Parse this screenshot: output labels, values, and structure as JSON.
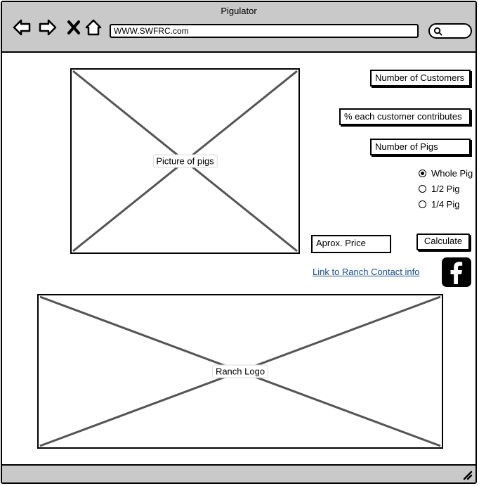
{
  "window": {
    "title": "Pigulator"
  },
  "browser": {
    "url": "WWW.SWFRC.com",
    "nav_icons": [
      "back-arrow-icon",
      "forward-arrow-icon",
      "close-icon",
      "home-icon"
    ],
    "search_icon": "magnifier-icon"
  },
  "form": {
    "customers_field": "Number of Customers",
    "percent_field": "% each customer contributes",
    "pigs_field": "Number of Pigs",
    "portion_options": [
      {
        "label": "Whole Pig",
        "checked": true
      },
      {
        "label": "1/2 Pig",
        "checked": false
      },
      {
        "label": "1/4 Pig",
        "checked": false
      }
    ],
    "price_field": "Aprox. Price",
    "calculate_label": "Calculate"
  },
  "images": {
    "pigs_label": "Picture of pigs",
    "logo_label": "Ranch Logo"
  },
  "footer_links": {
    "contact_link": "Link to Ranch Contact info",
    "social_icon": "facebook-icon"
  },
  "colors": {
    "chrome": "#c9c9c9",
    "link": "#1a4e8a",
    "placeholder_lines": "#555555"
  }
}
